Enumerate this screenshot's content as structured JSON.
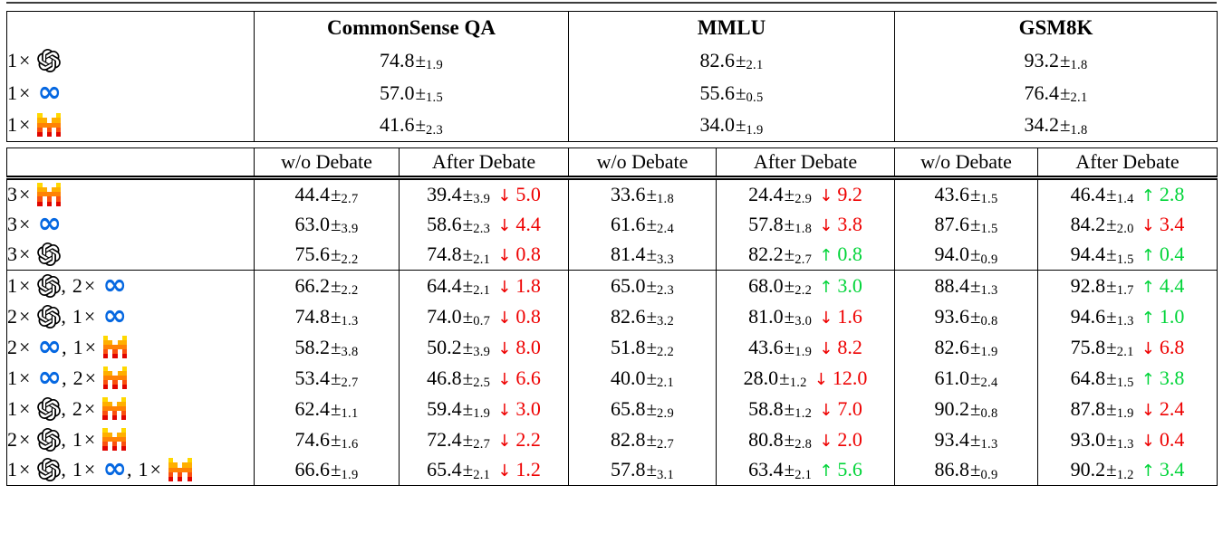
{
  "table": {
    "benchmarks": [
      "CommonSense QA",
      "MMLU",
      "GSM8K"
    ],
    "debate_header": {
      "wo": "w/o Debate",
      "after": "After Debate"
    },
    "symbols": {
      "pm": "±",
      "times": "×",
      "up": "↑",
      "down": "↓",
      "comma": ","
    },
    "colors": {
      "up": "#00D438",
      "down": "#EE0000",
      "meta_blue": "#0668E1",
      "openai_black": "#000000",
      "mistral_rows": [
        "#FFD800",
        "#FFAF00",
        "#FF8205",
        "#FA500F",
        "#E10500"
      ]
    },
    "single_rows": [
      {
        "combo": [
          {
            "count": "1",
            "model": "openai"
          }
        ],
        "scores": [
          {
            "v": "74.8",
            "e": "1.9"
          },
          {
            "v": "82.6",
            "e": "2.1"
          },
          {
            "v": "93.2",
            "e": "1.8"
          }
        ]
      },
      {
        "combo": [
          {
            "count": "1",
            "model": "meta"
          }
        ],
        "scores": [
          {
            "v": "57.0",
            "e": "1.5"
          },
          {
            "v": "55.6",
            "e": "0.5"
          },
          {
            "v": "76.4",
            "e": "2.1"
          }
        ]
      },
      {
        "combo": [
          {
            "count": "1",
            "model": "mistral"
          }
        ],
        "scores": [
          {
            "v": "41.6",
            "e": "2.3"
          },
          {
            "v": "34.0",
            "e": "1.9"
          },
          {
            "v": "34.2",
            "e": "1.8"
          }
        ]
      }
    ],
    "debate_rows": [
      {
        "combo": [
          {
            "count": "3",
            "model": "mistral"
          }
        ],
        "cells": [
          {
            "wo": {
              "v": "44.4",
              "e": "2.7"
            },
            "after": {
              "v": "39.4",
              "e": "3.9",
              "dir": "down",
              "d": "5.0"
            }
          },
          {
            "wo": {
              "v": "33.6",
              "e": "1.8"
            },
            "after": {
              "v": "24.4",
              "e": "2.9",
              "dir": "down",
              "d": "9.2"
            }
          },
          {
            "wo": {
              "v": "43.6",
              "e": "1.5"
            },
            "after": {
              "v": "46.4",
              "e": "1.4",
              "dir": "up",
              "d": "2.8"
            }
          }
        ]
      },
      {
        "combo": [
          {
            "count": "3",
            "model": "meta"
          }
        ],
        "cells": [
          {
            "wo": {
              "v": "63.0",
              "e": "3.9"
            },
            "after": {
              "v": "58.6",
              "e": "2.3",
              "dir": "down",
              "d": "4.4"
            }
          },
          {
            "wo": {
              "v": "61.6",
              "e": "2.4"
            },
            "after": {
              "v": "57.8",
              "e": "1.8",
              "dir": "down",
              "d": "3.8"
            }
          },
          {
            "wo": {
              "v": "87.6",
              "e": "1.5"
            },
            "after": {
              "v": "84.2",
              "e": "2.0",
              "dir": "down",
              "d": "3.4"
            }
          }
        ]
      },
      {
        "combo": [
          {
            "count": "3",
            "model": "openai"
          }
        ],
        "separator_after": true,
        "cells": [
          {
            "wo": {
              "v": "75.6",
              "e": "2.2"
            },
            "after": {
              "v": "74.8",
              "e": "2.1",
              "dir": "down",
              "d": "0.8"
            }
          },
          {
            "wo": {
              "v": "81.4",
              "e": "3.3"
            },
            "after": {
              "v": "82.2",
              "e": "2.7",
              "dir": "up",
              "d": "0.8"
            }
          },
          {
            "wo": {
              "v": "94.0",
              "e": "0.9"
            },
            "after": {
              "v": "94.4",
              "e": "1.5",
              "dir": "up",
              "d": "0.4"
            }
          }
        ]
      },
      {
        "combo": [
          {
            "count": "1",
            "model": "openai"
          },
          {
            "count": "2",
            "model": "meta"
          }
        ],
        "cells": [
          {
            "wo": {
              "v": "66.2",
              "e": "2.2"
            },
            "after": {
              "v": "64.4",
              "e": "2.1",
              "dir": "down",
              "d": "1.8"
            }
          },
          {
            "wo": {
              "v": "65.0",
              "e": "2.3"
            },
            "after": {
              "v": "68.0",
              "e": "2.2",
              "dir": "up",
              "d": "3.0"
            }
          },
          {
            "wo": {
              "v": "88.4",
              "e": "1.3"
            },
            "after": {
              "v": "92.8",
              "e": "1.7",
              "dir": "up",
              "d": "4.4"
            }
          }
        ]
      },
      {
        "combo": [
          {
            "count": "2",
            "model": "openai"
          },
          {
            "count": "1",
            "model": "meta"
          }
        ],
        "cells": [
          {
            "wo": {
              "v": "74.8",
              "e": "1.3"
            },
            "after": {
              "v": "74.0",
              "e": "0.7",
              "dir": "down",
              "d": "0.8"
            }
          },
          {
            "wo": {
              "v": "82.6",
              "e": "3.2"
            },
            "after": {
              "v": "81.0",
              "e": "3.0",
              "dir": "down",
              "d": "1.6"
            }
          },
          {
            "wo": {
              "v": "93.6",
              "e": "0.8"
            },
            "after": {
              "v": "94.6",
              "e": "1.3",
              "dir": "up",
              "d": "1.0"
            }
          }
        ]
      },
      {
        "combo": [
          {
            "count": "2",
            "model": "meta"
          },
          {
            "count": "1",
            "model": "mistral"
          }
        ],
        "cells": [
          {
            "wo": {
              "v": "58.2",
              "e": "3.8"
            },
            "after": {
              "v": "50.2",
              "e": "3.9",
              "dir": "down",
              "d": "8.0"
            }
          },
          {
            "wo": {
              "v": "51.8",
              "e": "2.2"
            },
            "after": {
              "v": "43.6",
              "e": "1.9",
              "dir": "down",
              "d": "8.2"
            }
          },
          {
            "wo": {
              "v": "82.6",
              "e": "1.9"
            },
            "after": {
              "v": "75.8",
              "e": "2.1",
              "dir": "down",
              "d": "6.8"
            }
          }
        ]
      },
      {
        "combo": [
          {
            "count": "1",
            "model": "meta"
          },
          {
            "count": "2",
            "model": "mistral"
          }
        ],
        "cells": [
          {
            "wo": {
              "v": "53.4",
              "e": "2.7"
            },
            "after": {
              "v": "46.8",
              "e": "2.5",
              "dir": "down",
              "d": "6.6"
            }
          },
          {
            "wo": {
              "v": "40.0",
              "e": "2.1"
            },
            "after": {
              "v": "28.0",
              "e": "1.2",
              "dir": "down",
              "d": "12.0"
            }
          },
          {
            "wo": {
              "v": "61.0",
              "e": "2.4"
            },
            "after": {
              "v": "64.8",
              "e": "1.5",
              "dir": "up",
              "d": "3.8"
            }
          }
        ]
      },
      {
        "combo": [
          {
            "count": "1",
            "model": "openai"
          },
          {
            "count": "2",
            "model": "mistral"
          }
        ],
        "cells": [
          {
            "wo": {
              "v": "62.4",
              "e": "1.1"
            },
            "after": {
              "v": "59.4",
              "e": "1.9",
              "dir": "down",
              "d": "3.0"
            }
          },
          {
            "wo": {
              "v": "65.8",
              "e": "2.9"
            },
            "after": {
              "v": "58.8",
              "e": "1.2",
              "dir": "down",
              "d": "7.0"
            }
          },
          {
            "wo": {
              "v": "90.2",
              "e": "0.8"
            },
            "after": {
              "v": "87.8",
              "e": "1.9",
              "dir": "down",
              "d": "2.4"
            }
          }
        ]
      },
      {
        "combo": [
          {
            "count": "2",
            "model": "openai"
          },
          {
            "count": "1",
            "model": "mistral"
          }
        ],
        "cells": [
          {
            "wo": {
              "v": "74.6",
              "e": "1.6"
            },
            "after": {
              "v": "72.4",
              "e": "2.7",
              "dir": "down",
              "d": "2.2"
            }
          },
          {
            "wo": {
              "v": "82.8",
              "e": "2.7"
            },
            "after": {
              "v": "80.8",
              "e": "2.8",
              "dir": "down",
              "d": "2.0"
            }
          },
          {
            "wo": {
              "v": "93.4",
              "e": "1.3"
            },
            "after": {
              "v": "93.0",
              "e": "1.3",
              "dir": "down",
              "d": "0.4"
            }
          }
        ]
      },
      {
        "combo": [
          {
            "count": "1",
            "model": "openai"
          },
          {
            "count": "1",
            "model": "meta"
          },
          {
            "count": "1",
            "model": "mistral"
          }
        ],
        "cells": [
          {
            "wo": {
              "v": "66.6",
              "e": "1.9"
            },
            "after": {
              "v": "65.4",
              "e": "2.1",
              "dir": "down",
              "d": "1.2"
            }
          },
          {
            "wo": {
              "v": "57.8",
              "e": "3.1"
            },
            "after": {
              "v": "63.4",
              "e": "2.1",
              "dir": "up",
              "d": "5.6"
            }
          },
          {
            "wo": {
              "v": "86.8",
              "e": "0.9"
            },
            "after": {
              "v": "90.2",
              "e": "1.2",
              "dir": "up",
              "d": "3.4"
            }
          }
        ]
      }
    ]
  }
}
